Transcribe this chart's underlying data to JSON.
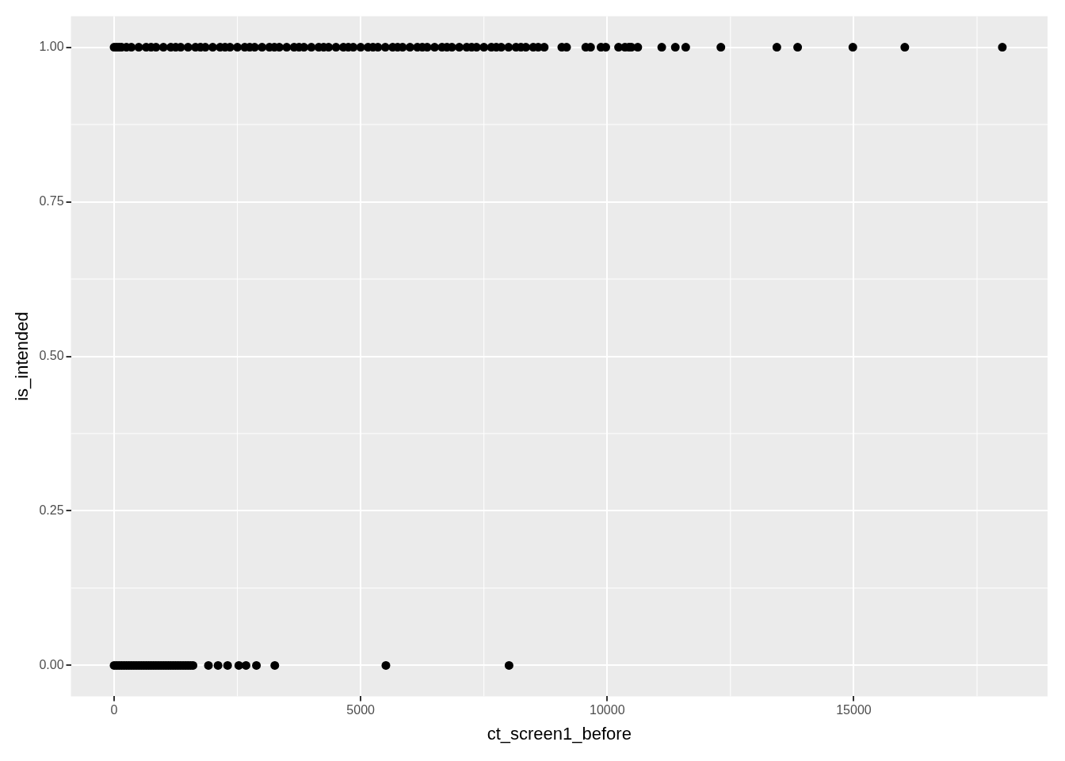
{
  "chart_data": {
    "type": "scatter",
    "xlabel": "ct_screen1_before",
    "ylabel": "is_intended",
    "xlim": [
      -875,
      18930
    ],
    "ylim": [
      -0.05,
      1.05
    ],
    "xticks": [
      0,
      5000,
      10000,
      15000
    ],
    "yticks": [
      {
        "value": 0,
        "label": "0.00"
      },
      {
        "value": 0.25,
        "label": "0.25"
      },
      {
        "value": 0.5,
        "label": "0.50"
      },
      {
        "value": 0.75,
        "label": "0.75"
      },
      {
        "value": 1,
        "label": "1.00"
      }
    ],
    "grid": true,
    "marker": "circle",
    "legend": false,
    "series": [
      {
        "color": "#000000",
        "x": [
          0,
          50,
          100,
          150,
          200,
          250,
          300,
          350,
          400,
          450,
          500,
          550,
          600,
          650,
          700,
          750,
          800,
          850,
          900,
          950,
          1000,
          1050,
          1100,
          1150,
          1200,
          1250,
          1300,
          1350,
          1400,
          1450,
          1500,
          1550,
          1600,
          1913,
          2108,
          2302,
          2529,
          2675,
          2886,
          3259,
          5512,
          8009
        ],
        "values": [
          0,
          0,
          0,
          0,
          0,
          0,
          0,
          0,
          0,
          0,
          0,
          0,
          0,
          0,
          0,
          0,
          0,
          0,
          0,
          0,
          0,
          0,
          0,
          0,
          0,
          0,
          0,
          0,
          0,
          0,
          0,
          0,
          0,
          0,
          0,
          0,
          0,
          0,
          0,
          0,
          0,
          0
        ]
      },
      {
        "color": "#000000",
        "x": [
          0,
          50,
          100,
          150,
          250,
          350,
          500,
          650,
          750,
          850,
          1000,
          1150,
          1250,
          1350,
          1500,
          1650,
          1750,
          1850,
          2000,
          2150,
          2250,
          2350,
          2500,
          2650,
          2750,
          2850,
          3000,
          3150,
          3250,
          3350,
          3500,
          3650,
          3750,
          3850,
          4000,
          4150,
          4250,
          4350,
          4500,
          4650,
          4750,
          4850,
          5000,
          5150,
          5250,
          5350,
          5500,
          5650,
          5750,
          5850,
          6000,
          6150,
          6250,
          6350,
          6500,
          6650,
          6750,
          6850,
          7000,
          7150,
          7250,
          7350,
          7500,
          7650,
          7750,
          7850,
          8000,
          8150,
          8250,
          8350,
          8500,
          8600,
          8723,
          9079,
          9176,
          9565,
          9663,
          9874,
          9971,
          10230,
          10360,
          10441,
          10490,
          10620,
          11106,
          11381,
          11592,
          12305,
          13440,
          13862,
          14981,
          16035,
          18013
        ],
        "values": [
          1,
          1,
          1,
          1,
          1,
          1,
          1,
          1,
          1,
          1,
          1,
          1,
          1,
          1,
          1,
          1,
          1,
          1,
          1,
          1,
          1,
          1,
          1,
          1,
          1,
          1,
          1,
          1,
          1,
          1,
          1,
          1,
          1,
          1,
          1,
          1,
          1,
          1,
          1,
          1,
          1,
          1,
          1,
          1,
          1,
          1,
          1,
          1,
          1,
          1,
          1,
          1,
          1,
          1,
          1,
          1,
          1,
          1,
          1,
          1,
          1,
          1,
          1,
          1,
          1,
          1,
          1,
          1,
          1,
          1,
          1,
          1,
          1,
          1,
          1,
          1,
          1,
          1,
          1,
          1,
          1,
          1,
          1,
          1,
          1,
          1,
          1,
          1,
          1,
          1,
          1,
          1,
          1
        ]
      }
    ]
  }
}
